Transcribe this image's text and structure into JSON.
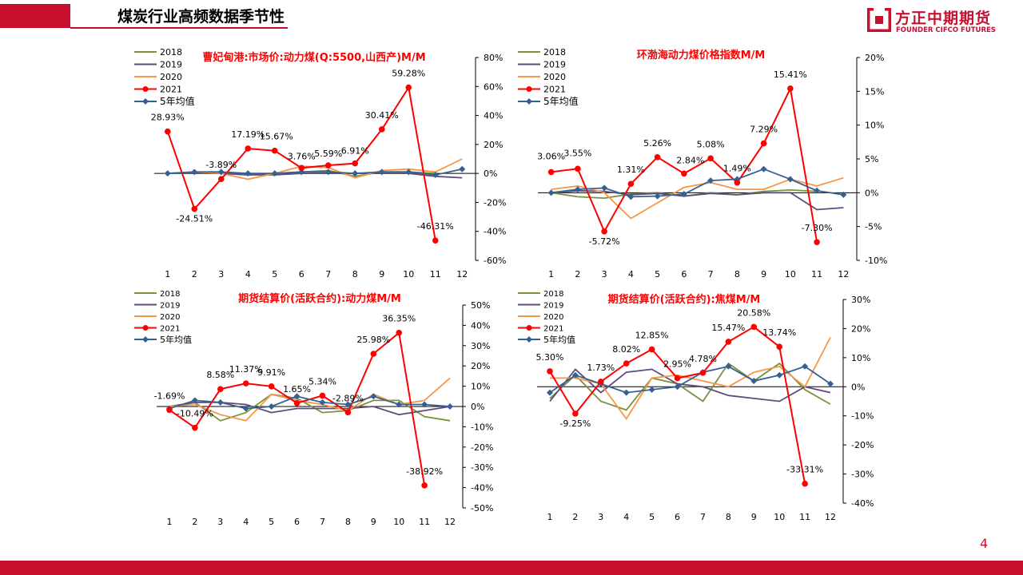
{
  "header": {
    "title": "煤炭行业高频数据季节性"
  },
  "logo": {
    "cn": "方正中期期货",
    "en": "FOUNDER CIFCO FUTURES"
  },
  "page_number": "4",
  "colors": {
    "brand": "#c8102e",
    "s2018": "#77933c",
    "s2019": "#604a7b",
    "s2020": "#f79646",
    "s2021": "#ff0000",
    "avg": "#376092"
  },
  "chart_data": [
    {
      "type": "line",
      "title": "曹妃甸港:市场价:动力煤(Q:5500,山西产)M/M",
      "x": [
        "1",
        "2",
        "3",
        "4",
        "5",
        "6",
        "7",
        "8",
        "9",
        "10",
        "11",
        "12"
      ],
      "ylim": [
        -60,
        80
      ],
      "ystep": 20,
      "ytick_format": "percent",
      "legend_position": "top-left",
      "series": [
        {
          "name": "2018",
          "values": [
            0,
            1,
            0,
            -1,
            0,
            1,
            2,
            -2,
            1,
            1,
            0,
            null
          ]
        },
        {
          "name": "2019",
          "values": [
            0,
            0,
            0,
            -1,
            -1,
            0,
            0,
            0,
            0,
            0,
            -2,
            -3
          ]
        },
        {
          "name": "2020",
          "values": [
            0,
            1,
            0,
            -4,
            0,
            5,
            4,
            -3,
            2,
            3,
            1,
            10
          ]
        },
        {
          "name": "2021",
          "values": [
            28.93,
            -24.51,
            -3.89,
            17.19,
            15.67,
            3.76,
            5.59,
            6.91,
            30.41,
            59.28,
            -46.31,
            null
          ],
          "labels": [
            "28.93%",
            "-24.51%",
            "-3.89%",
            "17.19%",
            "15.67%",
            "3.76%",
            "5.59%",
            "6.91%",
            "30.41%",
            "59.28%",
            "-46.31%",
            ""
          ]
        },
        {
          "name": "5年均值",
          "values": [
            0,
            1,
            1,
            0,
            0,
            1,
            1,
            0,
            1,
            1,
            -1,
            3
          ]
        }
      ]
    },
    {
      "type": "line",
      "title": "环渤海动力煤价格指数M/M",
      "x": [
        "1",
        "2",
        "3",
        "4",
        "5",
        "6",
        "7",
        "8",
        "9",
        "10",
        "11",
        "12"
      ],
      "ylim": [
        -10,
        20
      ],
      "ystep": 5,
      "ytick_format": "percent",
      "legend_position": "top-left",
      "series": [
        {
          "name": "2018",
          "values": [
            0,
            -0.6,
            -0.8,
            -0.2,
            0,
            -0.5,
            0,
            -0.3,
            0.2,
            0.4,
            0.2,
            null
          ]
        },
        {
          "name": "2019",
          "values": [
            0,
            0.3,
            0.2,
            -0.3,
            -0.1,
            -0.5,
            -0.1,
            -0.3,
            0,
            0,
            -2.5,
            -2.2
          ]
        },
        {
          "name": "2020",
          "values": [
            0.5,
            1,
            0,
            -3.8,
            -1.5,
            0.8,
            1.5,
            0.5,
            0.5,
            2,
            1,
            2.2
          ]
        },
        {
          "name": "2021",
          "values": [
            3.06,
            3.55,
            -5.72,
            1.31,
            5.26,
            2.84,
            5.08,
            1.49,
            7.29,
            15.41,
            -7.3,
            null
          ],
          "labels": [
            "3.06%",
            "3.55%",
            "-5.72%",
            "1.31%",
            "5.26%",
            "2.84%",
            "5.08%",
            "1.49%",
            "7.29%",
            "15.41%",
            "-7.30%",
            ""
          ]
        },
        {
          "name": "5年均值",
          "values": [
            0,
            0.5,
            0.7,
            -0.6,
            -0.5,
            -0.2,
            1.8,
            2,
            3.5,
            2,
            0.3,
            -0.3
          ]
        }
      ]
    },
    {
      "type": "line",
      "title": "期货结算价(活跃合约):动力煤M/M",
      "x": [
        "1",
        "2",
        "3",
        "4",
        "5",
        "6",
        "7",
        "8",
        "9",
        "10",
        "11",
        "12"
      ],
      "ylim": [
        -50,
        50
      ],
      "ystep": 10,
      "ytick_format": "percent",
      "legend_position": "top-left",
      "series": [
        {
          "name": "2018",
          "values": [
            0,
            2,
            -7,
            -3,
            6,
            4,
            -3,
            -2,
            3,
            3,
            -5,
            -7
          ]
        },
        {
          "name": "2019",
          "values": [
            0,
            2,
            2,
            1,
            -3,
            -1,
            -1,
            -1,
            0,
            -4,
            -2,
            0
          ]
        },
        {
          "name": "2020",
          "values": [
            0,
            1,
            -4,
            -7,
            6,
            3,
            1,
            -2,
            6,
            1,
            3,
            14
          ]
        },
        {
          "name": "2021",
          "values": [
            -1.69,
            -10.49,
            8.58,
            11.37,
            9.91,
            1.65,
            5.34,
            -2.89,
            25.98,
            36.35,
            -38.92,
            null
          ],
          "labels": [
            "-1.69%",
            "-10.49%",
            "8.58%",
            "11.37%",
            "9.91%",
            "1.65%",
            "5.34%",
            "-2.89%",
            "25.98%",
            "36.35%",
            "-38.92%",
            ""
          ]
        },
        {
          "name": "5年均值",
          "values": [
            -1,
            3,
            2,
            -1,
            0,
            5,
            2,
            1,
            5,
            1,
            1,
            0
          ]
        }
      ]
    },
    {
      "type": "line",
      "title": "期货结算价(活跃合约):焦煤M/M",
      "x": [
        "1",
        "2",
        "3",
        "4",
        "5",
        "6",
        "7",
        "8",
        "9",
        "10",
        "11",
        "12"
      ],
      "ylim": [
        -40,
        30
      ],
      "ystep": 10,
      "ytick_format": "percent",
      "legend_position": "top-left",
      "series": [
        {
          "name": "2018",
          "values": [
            -4,
            4,
            -5,
            -8,
            3,
            1,
            -5,
            8,
            2,
            8,
            -1,
            -6
          ]
        },
        {
          "name": "2019",
          "values": [
            -5,
            6,
            -2,
            5,
            6,
            1,
            0,
            -3,
            -4,
            -5,
            0,
            -2
          ]
        },
        {
          "name": "2020",
          "values": [
            3,
            3,
            1,
            -11,
            3,
            4,
            2,
            0,
            5,
            7,
            0,
            17
          ]
        },
        {
          "name": "2021",
          "values": [
            5.3,
            -9.25,
            1.73,
            8.02,
            12.85,
            2.95,
            4.78,
            15.47,
            20.58,
            13.74,
            -33.31,
            null
          ],
          "labels": [
            "5.30%",
            "-9.25%",
            "1.73%",
            "8.02%",
            "12.85%",
            "2.95%",
            "4.78%",
            "15.47%",
            "20.58%",
            "13.74%",
            "-33.31%",
            ""
          ]
        },
        {
          "name": "5年均值",
          "values": [
            -2,
            4,
            1,
            -2,
            -1,
            0,
            5,
            7,
            2,
            4,
            7,
            1
          ]
        }
      ]
    }
  ]
}
